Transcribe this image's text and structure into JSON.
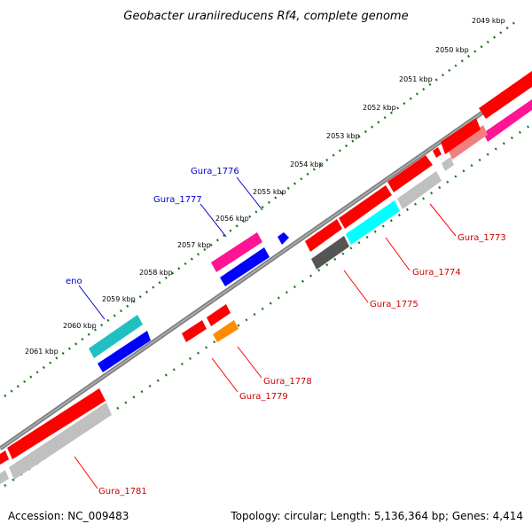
{
  "title": "Geobacter uraniireducens Rf4, complete genome",
  "footer": {
    "accession": "Accession: NC_009483",
    "summary": "Topology: circular; Length: 5,136,364 bp; Genes: 4,414"
  },
  "ticks": [
    "2049 kbp",
    "2050 kbp",
    "2051 kbp",
    "2052 kbp",
    "2053 kbp",
    "2054 kbp",
    "2055 kbp",
    "2056 kbp",
    "2057 kbp",
    "2058 kbp",
    "2059 kbp",
    "2060 kbp",
    "2061 kbp"
  ],
  "gene_labels": {
    "gura_1773": "Gura_1773",
    "gura_1774": "Gura_1774",
    "gura_1775": "Gura_1775",
    "gura_1776": "Gura_1776",
    "gura_1777": "Gura_1777",
    "gura_1778": "Gura_1778",
    "gura_1779": "Gura_1779",
    "gura_1781": "Gura_1781",
    "eno": "eno"
  },
  "colors": {
    "cds_red": "#ff0000",
    "cds_gray": "#c0c0c0",
    "cds_dark_gray": "#555555",
    "cds_cyan": "#00ffff",
    "cds_teal": "#20c0c0",
    "cds_magenta": "#ff1493",
    "cds_pink": "#f08080",
    "cds_blue": "#0000ff",
    "cds_orange": "#ff8c00",
    "tick_green": "#1a7a1a",
    "backbone": "#808080",
    "label_red": "#d10000",
    "label_blue": "#0000cc"
  }
}
